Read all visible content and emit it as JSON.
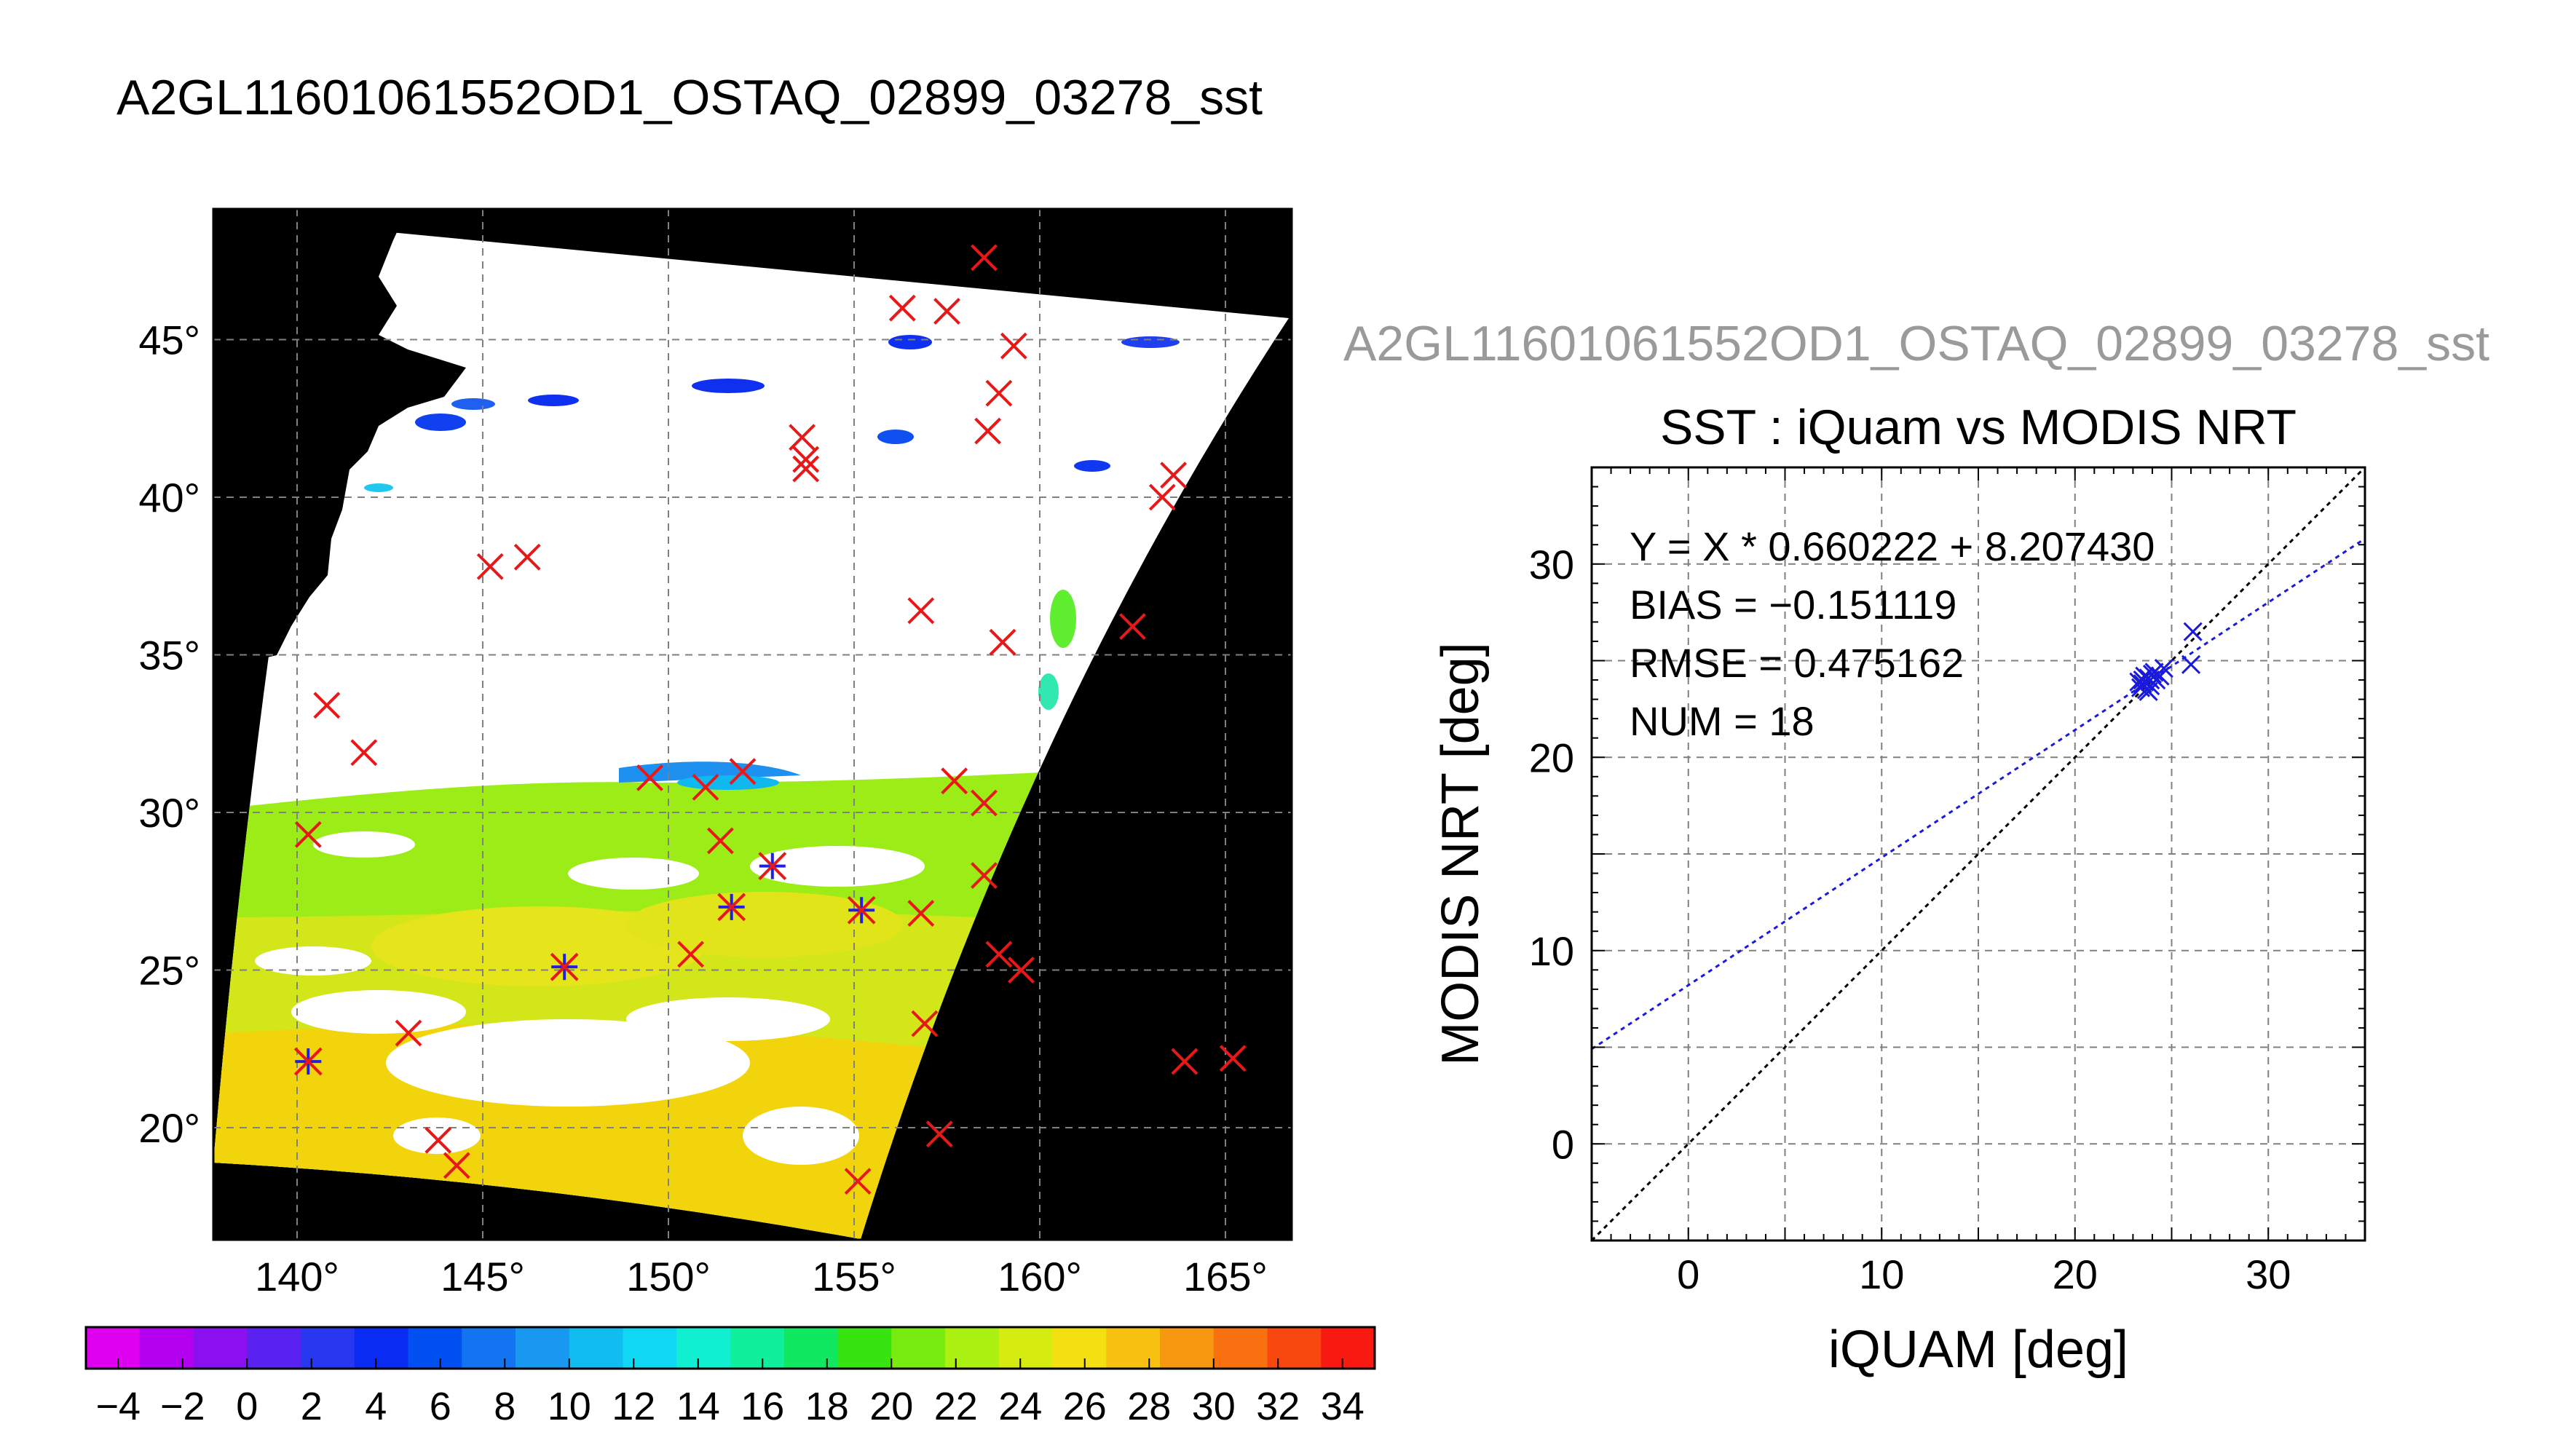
{
  "chart_data": [
    {
      "type": "map",
      "title": "A2GL11601061552OD1_OSTAQ_02899_03278_sst",
      "lon_ticks": [
        "140°",
        "145°",
        "150°",
        "155°",
        "160°",
        "165°"
      ],
      "lat_ticks": [
        "45°",
        "40°",
        "35°",
        "30°",
        "25°",
        "20°"
      ],
      "lon_range": [
        137.8,
        166.8
      ],
      "lat_range": [
        16.5,
        49.3
      ],
      "grid": true,
      "colorbar": {
        "ticks": [
          "−4",
          "−2",
          "0",
          "2",
          "4",
          "6",
          "8",
          "10",
          "12",
          "14",
          "16",
          "18",
          "20",
          "22",
          "24",
          "26",
          "28",
          "30",
          "32",
          "34"
        ],
        "range": [
          -5,
          35
        ],
        "colors": [
          "#e000f0",
          "#b400f0",
          "#8a10f0",
          "#5a22f0",
          "#2838f0",
          "#0a2cf2",
          "#0050f2",
          "#1274f0",
          "#1898f0",
          "#10bcf0",
          "#10d8f4",
          "#10f0d0",
          "#10f09c",
          "#10e860",
          "#38e410",
          "#78ec10",
          "#aaf010",
          "#d6ec10",
          "#f4e010",
          "#f8c010",
          "#f89810",
          "#f87010",
          "#f84810",
          "#f81a10"
        ]
      },
      "red_markers": [
        [
          158.5,
          47.6
        ],
        [
          156.3,
          46.0
        ],
        [
          157.5,
          45.9
        ],
        [
          159.3,
          44.8
        ],
        [
          158.9,
          43.3
        ],
        [
          158.6,
          42.1
        ],
        [
          153.6,
          41.9
        ],
        [
          153.7,
          41.2
        ],
        [
          153.7,
          40.9
        ],
        [
          163.6,
          40.7
        ],
        [
          163.3,
          40.0
        ],
        [
          145.2,
          37.8
        ],
        [
          146.2,
          38.1
        ],
        [
          156.8,
          36.4
        ],
        [
          159.0,
          35.4
        ],
        [
          162.5,
          35.9
        ],
        [
          140.8,
          33.4
        ],
        [
          141.8,
          31.9
        ],
        [
          149.5,
          31.1
        ],
        [
          152.0,
          31.3
        ],
        [
          151.0,
          30.8
        ],
        [
          157.7,
          31.0
        ],
        [
          158.5,
          30.3
        ],
        [
          140.3,
          29.3
        ],
        [
          151.4,
          29.1
        ],
        [
          158.5,
          28.0
        ],
        [
          156.8,
          26.8
        ],
        [
          150.6,
          25.5
        ],
        [
          158.9,
          25.5
        ],
        [
          159.5,
          25.0
        ],
        [
          156.9,
          23.3
        ],
        [
          143.0,
          23.0
        ],
        [
          163.9,
          22.1
        ],
        [
          165.2,
          22.2
        ],
        [
          143.8,
          19.6
        ],
        [
          144.3,
          18.8
        ],
        [
          157.3,
          19.8
        ],
        [
          155.1,
          18.3
        ]
      ],
      "blue_star_markers": [
        [
          151.7,
          27.0
        ],
        [
          152.8,
          28.3
        ],
        [
          155.2,
          26.9
        ],
        [
          147.2,
          25.1
        ],
        [
          140.3,
          22.1
        ]
      ]
    },
    {
      "type": "scatter",
      "title_top": "A2GL11601061552OD1_OSTAQ_02899_03278_sst",
      "title": "SST : iQuam vs MODIS NRT",
      "xlabel": "iQUAM [deg]",
      "ylabel": "MODIS NRT [deg]",
      "xlim": [
        -5,
        35
      ],
      "ylim": [
        -5,
        35
      ],
      "xticks": [
        "0",
        "10",
        "20",
        "30"
      ],
      "yticks": [
        "0",
        "10",
        "20",
        "30"
      ],
      "grid": true,
      "stats": {
        "fit": "Y = X * 0.660222 + 8.207430",
        "bias": "BIAS = −0.151119",
        "rmse": "RMSE = 0.475162",
        "num": "NUM = 18"
      },
      "fit_line": {
        "slope": 0.660222,
        "intercept": 8.20743
      },
      "one_to_one": true,
      "points": [
        [
          23.4,
          23.6
        ],
        [
          23.6,
          23.9
        ],
        [
          23.8,
          24.1
        ],
        [
          24.0,
          24.3
        ],
        [
          23.5,
          23.8
        ],
        [
          23.7,
          23.5
        ],
        [
          23.9,
          23.7
        ],
        [
          24.2,
          24.0
        ],
        [
          23.6,
          24.2
        ],
        [
          23.3,
          23.9
        ],
        [
          23.8,
          23.4
        ],
        [
          24.1,
          24.4
        ],
        [
          24.4,
          24.2
        ],
        [
          23.5,
          24.0
        ],
        [
          23.9,
          24.0
        ],
        [
          24.6,
          24.6
        ],
        [
          26.1,
          26.5
        ],
        [
          26.0,
          24.8
        ]
      ]
    }
  ]
}
